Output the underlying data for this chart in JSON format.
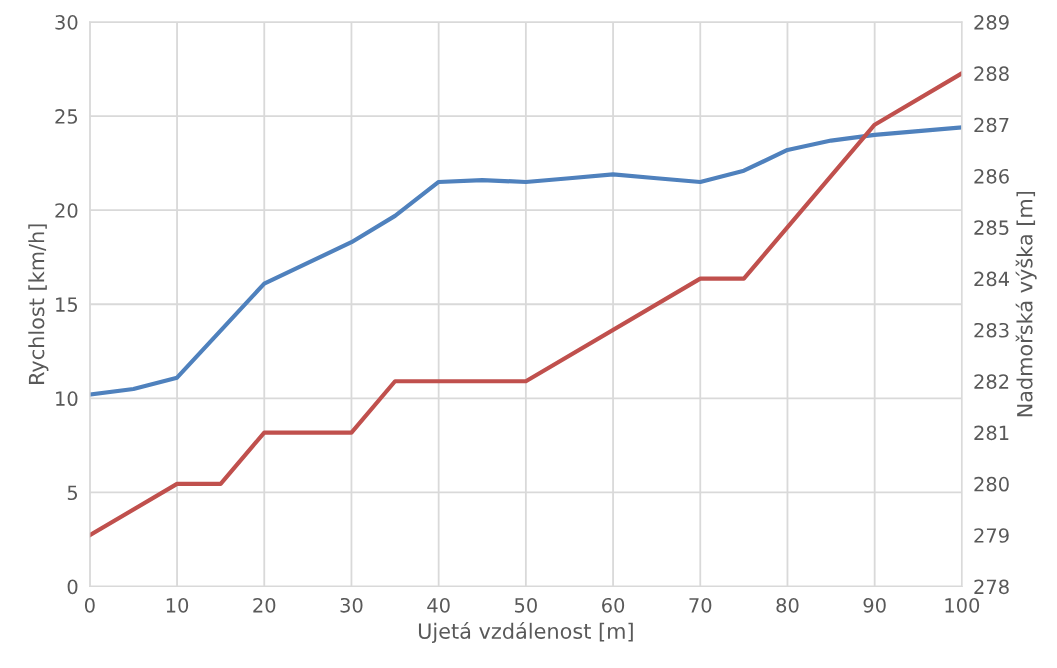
{
  "chart_data": {
    "type": "line",
    "xlabel": "Ujetá vzdálenost [m]",
    "ylabel": "Rychlost [km/h]",
    "y2label": "Nadmořská výška [m]",
    "xlim": [
      0,
      100
    ],
    "xticks": [
      0,
      10,
      20,
      30,
      40,
      50,
      60,
      70,
      80,
      90,
      100
    ],
    "ylim": [
      0,
      30
    ],
    "yticks": [
      0,
      5,
      10,
      15,
      20,
      25,
      30
    ],
    "y2lim": [
      278,
      289
    ],
    "y2ticks": [
      278,
      279,
      280,
      281,
      282,
      283,
      284,
      285,
      286,
      287,
      288,
      289
    ],
    "grid": true,
    "marker": "none",
    "line_style": "solid",
    "series": [
      {
        "color": "#4f81bd",
        "x": [
          0,
          5,
          10,
          15,
          20,
          25,
          30,
          35,
          40,
          45,
          50,
          55,
          60,
          65,
          70,
          75,
          80,
          85,
          90,
          95,
          100
        ],
        "values": [
          10.2,
          10.5,
          11.1,
          13.6,
          16.1,
          17.2,
          18.3,
          19.7,
          21.5,
          21.6,
          21.5,
          21.7,
          21.9,
          21.7,
          21.5,
          22.1,
          23.2,
          23.7,
          24.0,
          24.2,
          24.4
        ]
      },
      {
        "color": "#c0504d",
        "axis": "y2",
        "x": [
          0,
          10,
          15,
          20,
          30,
          35,
          50,
          70,
          75,
          90,
          100
        ],
        "values": [
          279,
          280,
          280,
          281,
          281,
          282,
          282,
          284,
          284,
          287,
          288
        ]
      }
    ]
  }
}
